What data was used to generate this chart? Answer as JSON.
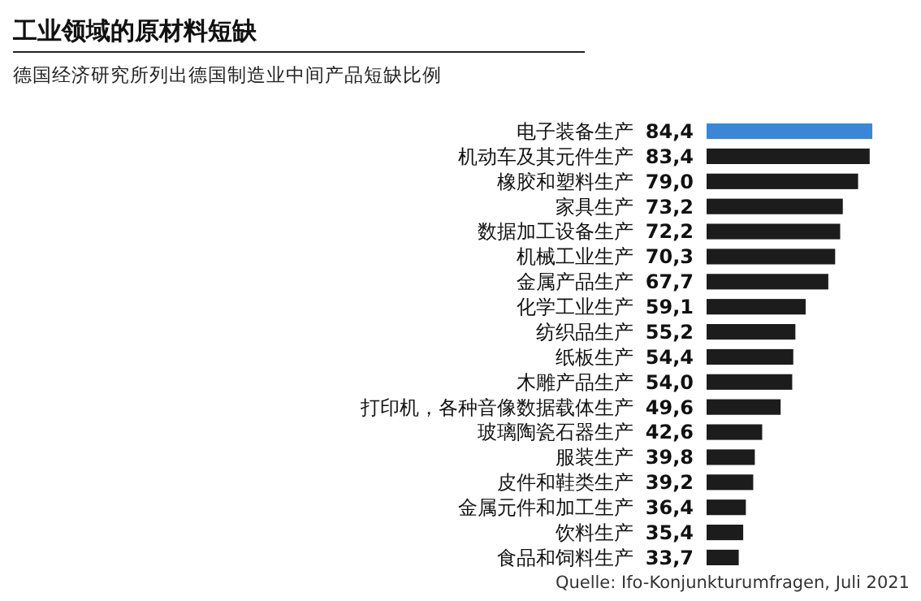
{
  "chart_data": {
    "type": "bar",
    "orientation": "horizontal",
    "title": "工业领域的原材料短缺",
    "subtitle": "德国经济研究所列出德国制造业中间产品短缺比例",
    "categories": [
      "电子装备生产",
      "机动车及其元件生产",
      "橡胶和塑料生产",
      "家具生产",
      "数据加工设备生产",
      "机械工业生产",
      "金属产品生产",
      "化学工业生产",
      "纺织品生产",
      "纸板生产",
      "木雕产品生产",
      "打印机，各种音像数据载体生产",
      "玻璃陶瓷石器生产",
      "服装生产",
      "皮件和鞋类生产",
      "金属元件和加工生产",
      "饮料生产",
      "食品和饲料生产"
    ],
    "values": [
      84.4,
      83.4,
      79.0,
      73.2,
      72.2,
      70.3,
      67.7,
      59.1,
      55.2,
      54.4,
      54.0,
      49.6,
      42.6,
      39.8,
      39.2,
      36.4,
      35.4,
      33.7
    ],
    "value_labels": [
      "84,4",
      "83,4",
      "79,0",
      "73,2",
      "72,2",
      "70,3",
      "67,7",
      "59,1",
      "55,2",
      "54,4",
      "54,0",
      "49,6",
      "42,6",
      "39,8",
      "39,2",
      "36,4",
      "35,4",
      "33,7"
    ],
    "colors": [
      "#3b87d6",
      "#1c1c1c",
      "#1c1c1c",
      "#1c1c1c",
      "#1c1c1c",
      "#1c1c1c",
      "#1c1c1c",
      "#1c1c1c",
      "#1c1c1c",
      "#1c1c1c",
      "#1c1c1c",
      "#1c1c1c",
      "#1c1c1c",
      "#1c1c1c",
      "#1c1c1c",
      "#1c1c1c",
      "#1c1c1c",
      "#1c1c1c"
    ],
    "xlim": [
      21.5,
      85
    ],
    "tick_labels": "y",
    "annotations": [
      "Quelle: Ifo-Konjunkturumfragen, Juli 2021"
    ]
  }
}
